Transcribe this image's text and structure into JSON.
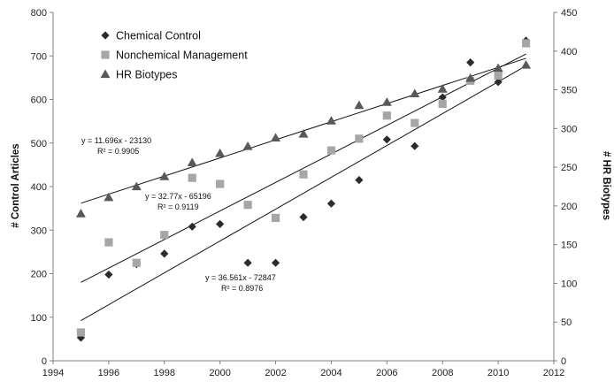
{
  "chart_data": {
    "type": "scatter",
    "x": [
      1995,
      1996,
      1997,
      1998,
      1999,
      2000,
      2001,
      2002,
      2003,
      2004,
      2005,
      2006,
      2007,
      2008,
      2009,
      2010,
      2011
    ],
    "xlim": [
      1994,
      2012
    ],
    "x_ticks": [
      "1994",
      "1996",
      "1998",
      "2000",
      "2002",
      "2004",
      "2006",
      "2008",
      "2010",
      "2012"
    ],
    "ylabel": "# Control Articles",
    "ylim": [
      0,
      800
    ],
    "y_ticks": [
      "0",
      "100",
      "200",
      "300",
      "400",
      "500",
      "600",
      "700",
      "800"
    ],
    "y2label": "# HR Biotypes",
    "y2lim": [
      0,
      450
    ],
    "y2_ticks": [
      "0",
      "50",
      "100",
      "150",
      "200",
      "250",
      "300",
      "350",
      "400",
      "450"
    ],
    "grid": false,
    "legend_position": "top-left",
    "series": [
      {
        "name": "Chemical Control",
        "marker": "diamond",
        "color": "#2b2b2b",
        "axis": "left",
        "values": [
          53,
          198,
          222,
          246,
          308,
          314,
          225,
          225,
          330,
          361,
          415,
          508,
          493,
          605,
          685,
          640,
          735
        ],
        "trendline": {
          "slope": 36.561,
          "intercept": -72847
        },
        "equation": "y = 36.561x - 72847",
        "r2": "R² = 0.8976"
      },
      {
        "name": "Nonchemical Management",
        "marker": "square",
        "color": "#a6a6a6",
        "axis": "left",
        "values": [
          65,
          272,
          225,
          289,
          420,
          406,
          358,
          328,
          428,
          483,
          510,
          563,
          546,
          590,
          643,
          655,
          729
        ],
        "trendline": {
          "slope": 32.77,
          "intercept": -65196
        },
        "equation": "y = 32.77x - 65196",
        "r2": "R² = 0.9119"
      },
      {
        "name": "HR Biotypes",
        "marker": "triangle",
        "color": "#595959",
        "axis": "right",
        "values": [
          190,
          211,
          225,
          238,
          256,
          268,
          277,
          288,
          293,
          310,
          330,
          334,
          345,
          351,
          365,
          378,
          382
        ],
        "trendline": {
          "slope": 11.696,
          "intercept": -23130
        },
        "equation": "y = 11.696x - 23130",
        "r2": "R² = 0.9905"
      }
    ]
  }
}
